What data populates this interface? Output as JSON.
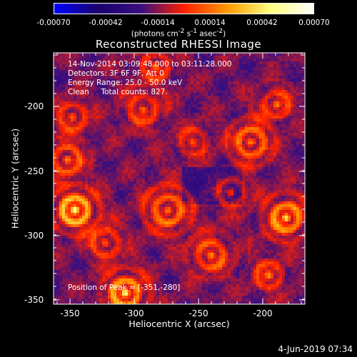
{
  "chart_data": {
    "type": "heatmap",
    "title": "Reconstructed RHESSI Image",
    "xlabel": "Heliocentric X (arcsec)",
    "ylabel": "Heliocentric Y (arcsec)",
    "xlim": [
      -365,
      -170
    ],
    "ylim": [
      -352,
      -157
    ],
    "x_ticks": [
      "-350",
      "-300",
      "-250",
      "-200"
    ],
    "y_ticks": [
      "-200",
      "-250",
      "-300",
      "-350"
    ],
    "colorbar": {
      "ticks": [
        "-0.00070",
        "-0.00042",
        "-0.00014",
        "0.00014",
        "0.00042",
        "0.00070"
      ],
      "range": [
        -0.0007,
        0.0007
      ],
      "units_text": "(photons cm",
      "units_sup1": "-2",
      "units_mid": " s",
      "units_sup2": "-1",
      "units_tail": " asec",
      "units_sup3": "-2",
      "units_end": ")",
      "colormap": [
        "#0000ff",
        "#1a0070",
        "#3a0f80",
        "#ff2000",
        "#ff9a00",
        "#ffff80",
        "#ffffff"
      ]
    },
    "annotations": [
      "14-Nov-2014 03:09:48.000 to 03:11:28.000",
      "Detectors: 3F 6F 9F, Att 0",
      "Energy Range: 25.0 - 50.0 keV",
      "Clean     Total counts: 827."
    ],
    "peak_label": "Position of Peak = [-351,-280]"
  },
  "footer": {
    "date": "4-Jun-2019 07:34"
  }
}
